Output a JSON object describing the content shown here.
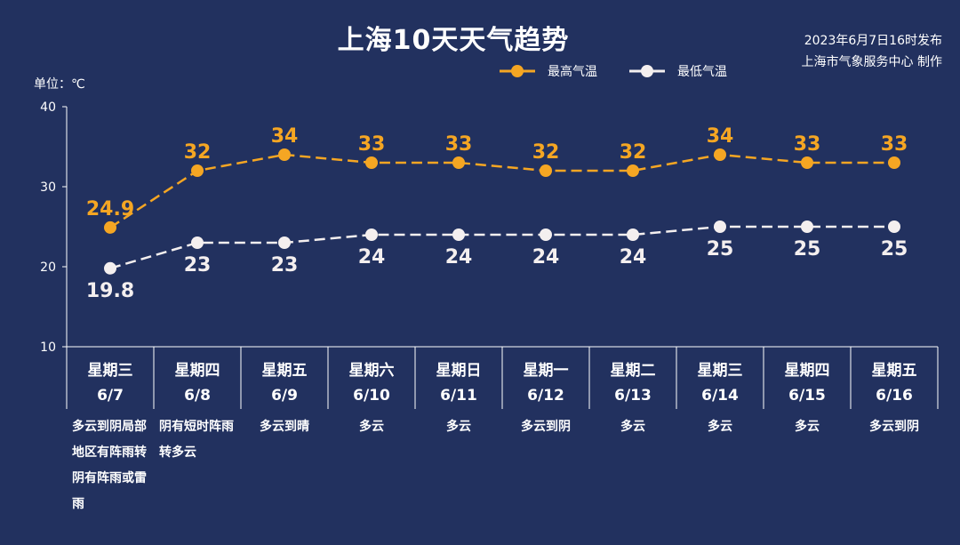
{
  "header": {
    "title": "上海10天天气趋势",
    "publish_time": "2023年6月7日16时发布",
    "publisher": "上海市气象服务中心 制作",
    "unit_label": "单位：℃"
  },
  "legend": {
    "high_label": "最高气温",
    "low_label": "最低气温"
  },
  "colors": {
    "background": "#22315f",
    "high": "#f5a623",
    "low": "#f4efef"
  },
  "days": [
    {
      "weekday": "星期三",
      "date": "6/7",
      "weather": "多云到阴局部地区有阵雨转阴有阵雨或雷雨"
    },
    {
      "weekday": "星期四",
      "date": "6/8",
      "weather": "阴有短时阵雨转多云"
    },
    {
      "weekday": "星期五",
      "date": "6/9",
      "weather": "多云到晴"
    },
    {
      "weekday": "星期六",
      "date": "6/10",
      "weather": "多云"
    },
    {
      "weekday": "星期日",
      "date": "6/11",
      "weather": "多云"
    },
    {
      "weekday": "星期一",
      "date": "6/12",
      "weather": "多云到阴"
    },
    {
      "weekday": "星期二",
      "date": "6/13",
      "weather": "多云"
    },
    {
      "weekday": "星期三",
      "date": "6/14",
      "weather": "多云"
    },
    {
      "weekday": "星期四",
      "date": "6/15",
      "weather": "多云"
    },
    {
      "weekday": "星期五",
      "date": "6/16",
      "weather": "多云到阴"
    }
  ],
  "chart_data": {
    "type": "line",
    "title": "上海10天天气趋势",
    "ylabel": "单位：℃",
    "ylim": [
      10,
      40
    ],
    "yticks": [
      10,
      20,
      30,
      40
    ],
    "legend_position": "top-center",
    "grid": false,
    "x": [
      "6/7",
      "6/8",
      "6/9",
      "6/10",
      "6/11",
      "6/12",
      "6/13",
      "6/14",
      "6/15",
      "6/16"
    ],
    "series": [
      {
        "name": "最高气温",
        "values": [
          24.9,
          32,
          34,
          33,
          33,
          32,
          32,
          34,
          33,
          33
        ],
        "labels": [
          "24.9",
          "32",
          "34",
          "33",
          "33",
          "32",
          "32",
          "34",
          "33",
          "33"
        ]
      },
      {
        "name": "最低气温",
        "values": [
          19.8,
          23,
          23,
          24,
          24,
          24,
          24,
          25,
          25,
          25
        ],
        "labels": [
          "19.8",
          "23",
          "23",
          "24",
          "24",
          "24",
          "24",
          "25",
          "25",
          "25"
        ]
      }
    ]
  }
}
